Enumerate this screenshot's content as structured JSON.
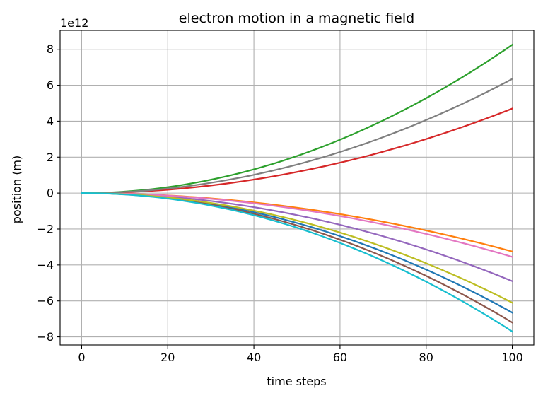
{
  "chart_data": {
    "type": "line",
    "title": "electron motion in a magnetic field",
    "xlabel": "time steps",
    "ylabel": "position (m)",
    "y_offset_label": "1e12",
    "xlim": [
      -5,
      105
    ],
    "ylim": [
      -8.45,
      9.05
    ],
    "x_ticks": [
      0,
      20,
      40,
      60,
      80,
      100
    ],
    "y_ticks": [
      -8,
      -6,
      -4,
      -2,
      0,
      2,
      4,
      6,
      8
    ],
    "x_tick_labels": [
      "0",
      "20",
      "40",
      "60",
      "80",
      "100"
    ],
    "y_tick_labels": [
      "−8",
      "−6",
      "−4",
      "−2",
      "0",
      "2",
      "4",
      "6",
      "8"
    ],
    "grid": true,
    "x": [
      0,
      100
    ],
    "curve_shape": "quadratic",
    "series": [
      {
        "color": "#1f77b4",
        "values": [
          0,
          -6.65
        ]
      },
      {
        "color": "#ff7f0e",
        "values": [
          0,
          -3.25
        ]
      },
      {
        "color": "#2ca02c",
        "values": [
          0,
          8.25
        ]
      },
      {
        "color": "#d62728",
        "values": [
          0,
          4.7
        ]
      },
      {
        "color": "#9467bd",
        "values": [
          0,
          -4.9
        ]
      },
      {
        "color": "#8c564b",
        "values": [
          0,
          -7.2
        ]
      },
      {
        "color": "#e377c2",
        "values": [
          0,
          -3.55
        ]
      },
      {
        "color": "#7f7f7f",
        "values": [
          0,
          6.35
        ]
      },
      {
        "color": "#bcbd22",
        "values": [
          0,
          -6.1
        ]
      },
      {
        "color": "#17becf",
        "values": [
          0,
          -7.7
        ]
      }
    ]
  }
}
